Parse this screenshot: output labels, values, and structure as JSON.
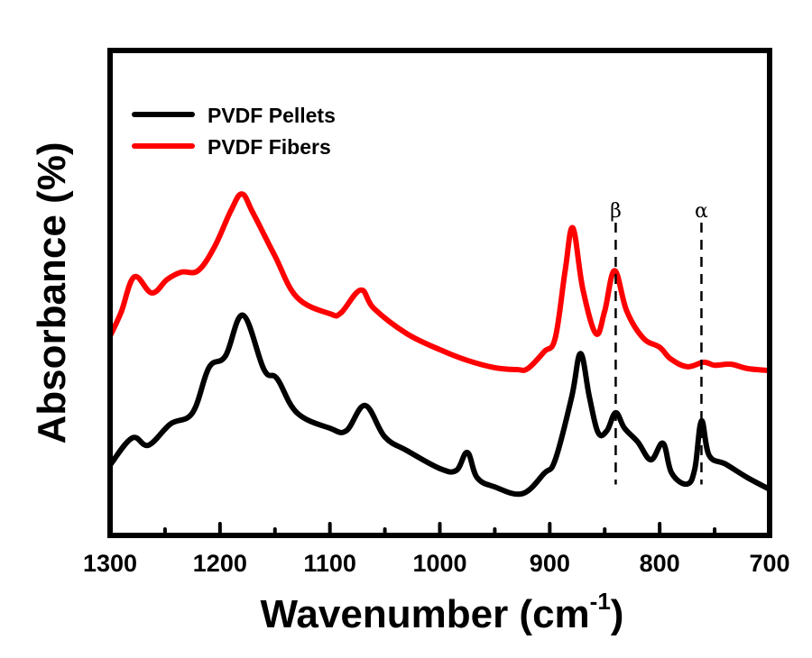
{
  "chart_data": {
    "type": "line",
    "title": "",
    "xlabel": "Wavenumber (cm",
    "xlabel_superscript": "-1",
    "xlabel_close": ")",
    "ylabel": "Absorbance (%)",
    "xlim": [
      1300,
      700
    ],
    "ylim": [
      0,
      100
    ],
    "x_reversed": true,
    "grid": false,
    "x_ticks": [
      1300,
      1200,
      1100,
      1000,
      900,
      800,
      700
    ],
    "x_tick_labels": [
      "1300",
      "1200",
      "1100",
      "1000",
      "900",
      "800",
      "700"
    ],
    "x_minor_ticks": [
      1250,
      1150,
      1050,
      950,
      850,
      750
    ],
    "y_ticks_shown": false,
    "legend": {
      "placement": "top-left",
      "entries": [
        {
          "label": "PVDF Pellets",
          "color": "#000000"
        },
        {
          "label": "PVDF Fibers",
          "color": "#ff0000"
        }
      ]
    },
    "annotations": [
      {
        "label": "β",
        "x": 840,
        "style": "dashed-vertical",
        "y_range": [
          12,
          63
        ]
      },
      {
        "label": "α",
        "x": 762,
        "style": "dashed-vertical",
        "y_range": [
          12,
          63
        ]
      }
    ],
    "series": [
      {
        "name": "PVDF Pellets",
        "color": "#000000",
        "x": [
          1300,
          1280,
          1265,
          1245,
          1225,
          1210,
          1195,
          1179,
          1160,
          1148,
          1130,
          1100,
          1085,
          1068,
          1050,
          1030,
          1000,
          985,
          975,
          966,
          950,
          925,
          905,
          895,
          880,
          872,
          864,
          856,
          848,
          840,
          832,
          820,
          808,
          797,
          789,
          775,
          768,
          762,
          755,
          740,
          720,
          700
        ],
        "y": [
          14.5,
          20.1,
          18.6,
          23.0,
          25.3,
          34.6,
          37.0,
          45.4,
          34.2,
          32.3,
          25.3,
          22.1,
          21.6,
          26.8,
          20.3,
          17.5,
          13.8,
          13.4,
          17.1,
          11.9,
          10.0,
          8.6,
          12.8,
          15.6,
          28.6,
          37.5,
          28.6,
          21.2,
          21.6,
          25.3,
          22.1,
          19.3,
          15.6,
          19.0,
          12.8,
          10.6,
          13.8,
          23.6,
          16.5,
          14.7,
          11.9,
          9.5
        ]
      },
      {
        "name": "PVDF Fibers",
        "color": "#ff0000",
        "x": [
          1300,
          1290,
          1278,
          1262,
          1248,
          1235,
          1220,
          1205,
          1190,
          1180,
          1170,
          1150,
          1130,
          1100,
          1090,
          1072,
          1060,
          1030,
          1000,
          975,
          950,
          930,
          920,
          905,
          895,
          886,
          879,
          870,
          858,
          850,
          841,
          830,
          815,
          800,
          790,
          775,
          760,
          750,
          735,
          720,
          700
        ],
        "y": [
          41.1,
          46.0,
          53.3,
          50.0,
          52.8,
          54.3,
          54.6,
          59.5,
          67.0,
          70.4,
          66.5,
          57.6,
          49.1,
          45.7,
          45.9,
          50.6,
          46.8,
          41.6,
          38.3,
          36.1,
          34.6,
          34.2,
          34.4,
          37.9,
          40.7,
          54.6,
          63.4,
          50.9,
          41.6,
          46.3,
          54.6,
          46.3,
          40.7,
          38.8,
          36.4,
          34.8,
          35.7,
          35.1,
          35.3,
          34.4,
          34.0
        ]
      }
    ]
  }
}
